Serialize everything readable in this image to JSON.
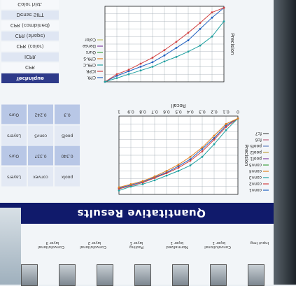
{
  "banner": {
    "title": "Quantitative Results"
  },
  "top_table": {
    "header": "Technique",
    "rows": [
      "CPR",
      "ICPR",
      "CPR (color)",
      "CPR (shape)",
      "CPR (combined)",
      "Dense SIFT",
      "Color hist."
    ]
  },
  "mid_table": {
    "cells": [
      "Layers",
      "convex",
      "poolx",
      "Layers",
      "conv5",
      "pool5",
      "Ours",
      "0.337",
      "0.340",
      "Ours",
      "0.242",
      "0.3"
    ]
  },
  "flow": {
    "nodes": [
      "Input Img",
      "Convolutional layer 1",
      "Normalized layer 1",
      "Pooling layer 1",
      "Convolutional layer 2",
      "Convolutional layer 3"
    ]
  },
  "chart_top": {
    "ylabel": "Precision",
    "legend": [
      "CPR",
      "ICPR",
      "CPR-C",
      "CPR-S",
      "Ours",
      "Dense",
      "Color"
    ],
    "colors": [
      "#2060c0",
      "#d04040",
      "#20a0a0",
      "#e08020",
      "#40a040",
      "#8040a0",
      "#c0c060"
    ]
  },
  "chart_bottom": {
    "xlabel": "Recall",
    "ylabel": "Precision",
    "ticks": [
      "0",
      "0.1",
      "0.2",
      "0.3",
      "0.4",
      "0.5",
      "0.6",
      "0.7",
      "0.8",
      "0.9",
      "1"
    ],
    "legend": [
      "conv1",
      "conv2",
      "conv3",
      "conv4",
      "conv5",
      "pool1",
      "pool2",
      "pool5",
      "fc6",
      "fc7"
    ],
    "colors": [
      "#2060c0",
      "#d04040",
      "#20a0a0",
      "#e08020",
      "#40a040",
      "#8040a0",
      "#c0a040",
      "#6080c0",
      "#c06080",
      "#505050"
    ]
  },
  "chart_data": [
    {
      "type": "line",
      "title": "",
      "xlabel": "",
      "ylabel": "Precision",
      "x": [
        0,
        0.1,
        0.2,
        0.3,
        0.4,
        0.5,
        0.6,
        0.7,
        0.8,
        0.9,
        1
      ],
      "series": [
        {
          "name": "CPR",
          "values": [
            0.02,
            0.15,
            0.3,
            0.45,
            0.55,
            0.65,
            0.74,
            0.8,
            0.86,
            0.92,
            1.0
          ]
        },
        {
          "name": "ICPR",
          "values": [
            0.02,
            0.08,
            0.22,
            0.35,
            0.47,
            0.58,
            0.68,
            0.76,
            0.84,
            0.9,
            1.0
          ]
        },
        {
          "name": "Ours",
          "values": [
            0.2,
            0.4,
            0.52,
            0.6,
            0.67,
            0.73,
            0.8,
            0.85,
            0.9,
            0.95,
            1.0
          ]
        }
      ],
      "ylim": [
        0,
        1
      ]
    },
    {
      "type": "line",
      "title": "",
      "xlabel": "Recall",
      "ylabel": "Precision",
      "x": [
        0,
        0.1,
        0.2,
        0.3,
        0.4,
        0.5,
        0.6,
        0.7,
        0.8,
        0.9,
        1
      ],
      "series": [
        {
          "name": "conv1",
          "values": [
            0.03,
            0.12,
            0.28,
            0.42,
            0.55,
            0.64,
            0.72,
            0.78,
            0.84,
            0.88,
            0.92
          ]
        },
        {
          "name": "conv2",
          "values": [
            0.03,
            0.14,
            0.3,
            0.45,
            0.57,
            0.66,
            0.73,
            0.79,
            0.85,
            0.89,
            0.93
          ]
        },
        {
          "name": "conv5",
          "values": [
            0.03,
            0.18,
            0.36,
            0.52,
            0.63,
            0.7,
            0.76,
            0.82,
            0.87,
            0.9,
            0.95
          ]
        },
        {
          "name": "fc7",
          "values": [
            0.03,
            0.1,
            0.25,
            0.4,
            0.52,
            0.62,
            0.7,
            0.77,
            0.83,
            0.87,
            0.91
          ]
        }
      ],
      "xlim": [
        0,
        1
      ],
      "ylim": [
        0,
        1
      ]
    }
  ]
}
